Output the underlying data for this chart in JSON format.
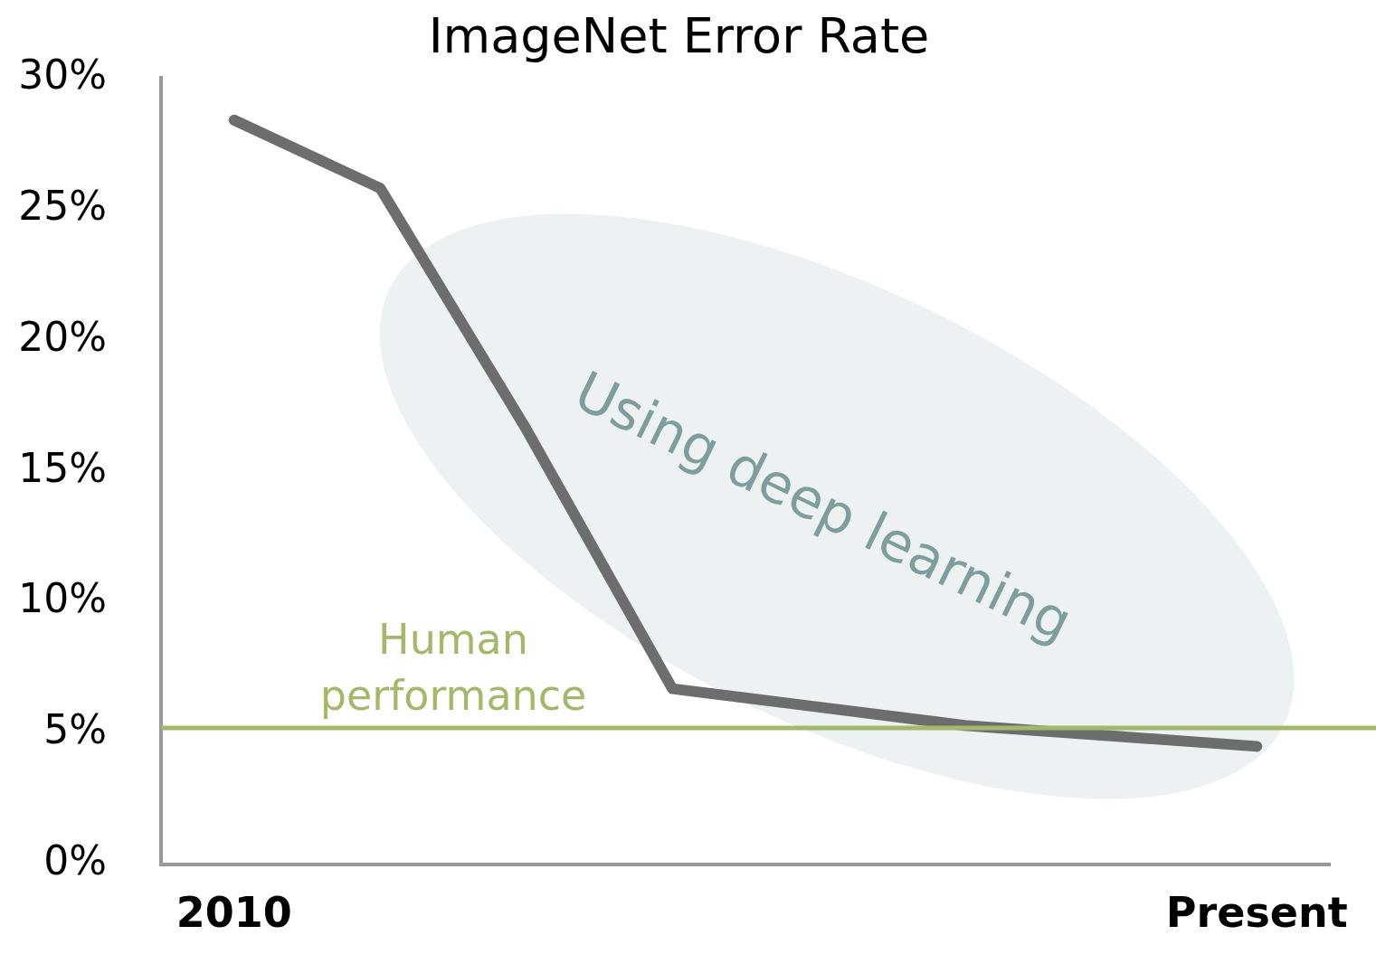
{
  "chart_data": {
    "type": "line",
    "title": "ImageNet Error Rate",
    "categories": [
      "2010",
      null,
      null,
      null,
      null,
      null,
      null,
      "Present"
    ],
    "series": [
      {
        "color": "#6d6d6d",
        "values": [
          28.4,
          25.8,
          16.6,
          6.7,
          6.0,
          5.3,
          4.9,
          4.5
        ]
      }
    ],
    "ylim": [
      0,
      30
    ],
    "yticks": [
      {
        "value": 0,
        "label": "0%"
      },
      {
        "value": 5,
        "label": "5%"
      },
      {
        "value": 10,
        "label": "10%"
      },
      {
        "value": 15,
        "label": "15%"
      },
      {
        "value": 20,
        "label": "20%"
      },
      {
        "value": 25,
        "label": "25%"
      },
      {
        "value": 30,
        "label": "30%"
      }
    ],
    "ref_lines": [
      {
        "axis": "y",
        "value": 5.2,
        "label": "Human performance",
        "color": "#a4b86a"
      }
    ],
    "annotations": [
      "Using deep learning"
    ],
    "grid": false,
    "legend": false,
    "marker": "none",
    "line_style": "solid"
  }
}
